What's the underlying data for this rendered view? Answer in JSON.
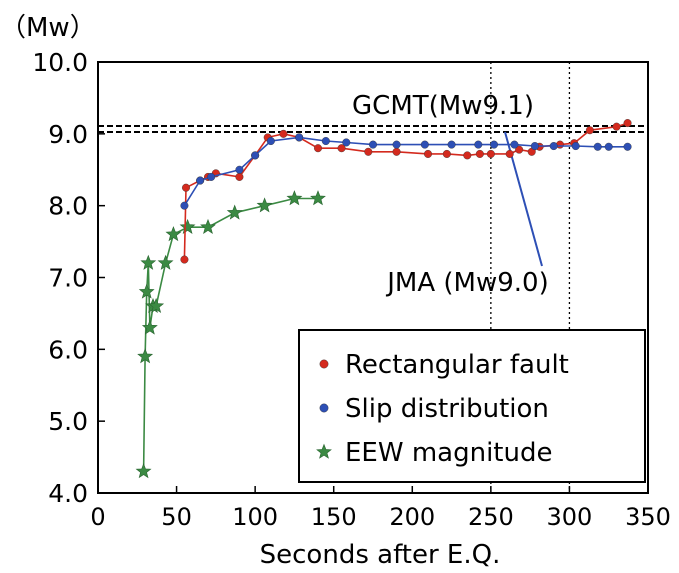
{
  "chart_data": {
    "type": "line",
    "unit_label": "（Mw）",
    "xlabel": "Seconds after E.Q.",
    "ylabel": "",
    "xlim": [
      0,
      350
    ],
    "ylim": [
      4.0,
      10.0
    ],
    "x_ticks": [
      0,
      50,
      100,
      150,
      200,
      250,
      300,
      350
    ],
    "y_ticks": [
      4.0,
      5.0,
      6.0,
      7.0,
      8.0,
      9.0,
      10.0
    ],
    "x_tick_labels": [
      "0",
      "50",
      "100",
      "150",
      "200",
      "250",
      "300",
      "350"
    ],
    "y_tick_labels": [
      "4.0",
      "5.0",
      "6.0",
      "7.0",
      "8.0",
      "9.0",
      "10.0"
    ],
    "vertical_gridlines_at": [
      250,
      300
    ],
    "legend_position": "bottom-right",
    "reference_lines": [
      {
        "label": "GCMT(Mw9.1)",
        "value": 9.1
      },
      {
        "label": "JMA (Mw9.0)",
        "value": 9.0
      }
    ],
    "series": [
      {
        "name": "Rectangular fault",
        "color": "#d42a1e",
        "marker": "circle",
        "x": [
          55,
          56,
          65,
          70,
          75,
          90,
          100,
          108,
          118,
          128,
          140,
          155,
          172,
          190,
          210,
          222,
          235,
          243,
          250,
          262,
          268,
          276,
          281,
          294,
          303,
          313,
          330,
          337
        ],
        "y": [
          7.25,
          8.25,
          8.35,
          8.4,
          8.45,
          8.4,
          8.7,
          8.95,
          9.0,
          8.95,
          8.8,
          8.8,
          8.75,
          8.75,
          8.72,
          8.72,
          8.7,
          8.72,
          8.72,
          8.72,
          8.78,
          8.75,
          8.82,
          8.85,
          8.87,
          9.05,
          9.1,
          9.15
        ]
      },
      {
        "name": "Slip distribution",
        "color": "#2d4fb5",
        "marker": "circle",
        "x": [
          55,
          65,
          72,
          90,
          100,
          110,
          128,
          145,
          158,
          175,
          190,
          208,
          225,
          242,
          252,
          265,
          278,
          290,
          304,
          318,
          325,
          337
        ],
        "y": [
          8.0,
          8.35,
          8.4,
          8.5,
          8.7,
          8.9,
          8.95,
          8.9,
          8.88,
          8.85,
          8.85,
          8.85,
          8.85,
          8.85,
          8.85,
          8.85,
          8.83,
          8.83,
          8.83,
          8.82,
          8.82,
          8.82
        ]
      },
      {
        "name": "EEW magnitude",
        "color": "#3b8a43",
        "marker": "star",
        "x": [
          29,
          30,
          31,
          32,
          33,
          35,
          37,
          43,
          48,
          57,
          70,
          87,
          106,
          125,
          140
        ],
        "y": [
          4.3,
          5.9,
          6.8,
          7.2,
          6.3,
          6.6,
          6.6,
          7.2,
          7.6,
          7.7,
          7.7,
          7.9,
          8.0,
          8.1,
          8.1
        ]
      }
    ]
  }
}
